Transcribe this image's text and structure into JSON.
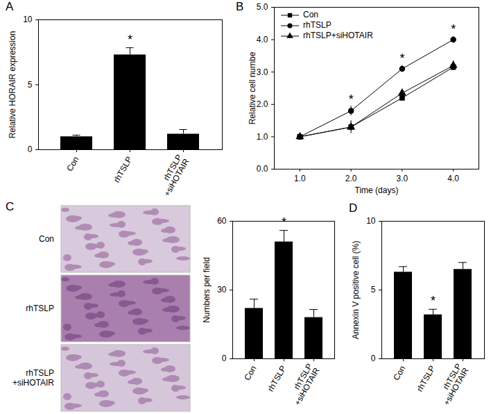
{
  "chart_data": [
    {
      "type": "bar",
      "title": "A",
      "categories": [
        "Con",
        "rhTSLP",
        "rhTSLP\n+siHOTAIR"
      ],
      "values": [
        1.0,
        7.3,
        1.2
      ],
      "errors": [
        0.12,
        0.55,
        0.35
      ],
      "color": "#000000",
      "ylabel": "Relative HORAIR expression",
      "ylim": [
        0,
        10
      ],
      "yticks": [
        0,
        5,
        10
      ],
      "annotations": [
        {
          "category": "rhTSLP",
          "text": "*"
        }
      ]
    },
    {
      "type": "line",
      "title": "B",
      "x": [
        1,
        2,
        3,
        4
      ],
      "xlabel": "Time (days)",
      "ylabel": "Relative cell numbe",
      "xlim": [
        0.5,
        4.5
      ],
      "xticks": [
        1,
        2,
        3,
        4
      ],
      "ylim": [
        0,
        5
      ],
      "yticks": [
        0,
        1,
        2,
        3,
        4,
        5
      ],
      "legend": "top-left",
      "series": [
        {
          "name": "Con",
          "color": "#000000",
          "marker": "square",
          "values": [
            1.0,
            1.3,
            2.2,
            3.15
          ],
          "errors": [
            0.05,
            0.12,
            0.1,
            0.1
          ]
        },
        {
          "name": "rhTSLP",
          "color": "#000000",
          "marker": "circle",
          "values": [
            1.0,
            1.8,
            3.1,
            4.0
          ],
          "errors": [
            0.05,
            0.15,
            0.1,
            0.1
          ]
        },
        {
          "name": "rhTSLP+siHOTAIR",
          "color": "#000000",
          "marker": "triangle",
          "values": [
            1.0,
            1.3,
            2.35,
            3.2
          ],
          "errors": [
            0.05,
            0.2,
            0.1,
            0.15
          ]
        }
      ],
      "annotations": [
        {
          "x": 2,
          "text": "*"
        },
        {
          "x": 3,
          "text": "*"
        },
        {
          "x": 4,
          "text": "*"
        }
      ]
    },
    {
      "type": "image",
      "title": "C",
      "categories": [
        "Con",
        "rhTSLP",
        "rhTSLP\n+siHOTAIR"
      ]
    },
    {
      "type": "bar",
      "categories": [
        "Con",
        "rhTSLP",
        "rhTSLP\n+siHOTAIR"
      ],
      "values": [
        22,
        51,
        18
      ],
      "errors": [
        4,
        5,
        3.5
      ],
      "color": "#000000",
      "ylabel": "Numbers per field",
      "ylim": [
        0,
        60
      ],
      "yticks": [
        0,
        30,
        60
      ],
      "annotations": [
        {
          "category": "rhTSLP",
          "text": "*"
        }
      ]
    },
    {
      "type": "bar",
      "title": "D",
      "categories": [
        "Con",
        "rhTSLP",
        "rhTSLP\n+siHOTAIR"
      ],
      "values": [
        6.3,
        3.2,
        6.5
      ],
      "errors": [
        0.4,
        0.4,
        0.5
      ],
      "color": "#000000",
      "ylabel": "Annexin V positive cell (%)",
      "ylim": [
        0,
        10
      ],
      "yticks": [
        0,
        5,
        10
      ],
      "annotations": [
        {
          "category": "rhTSLP",
          "text": "*"
        }
      ]
    }
  ]
}
